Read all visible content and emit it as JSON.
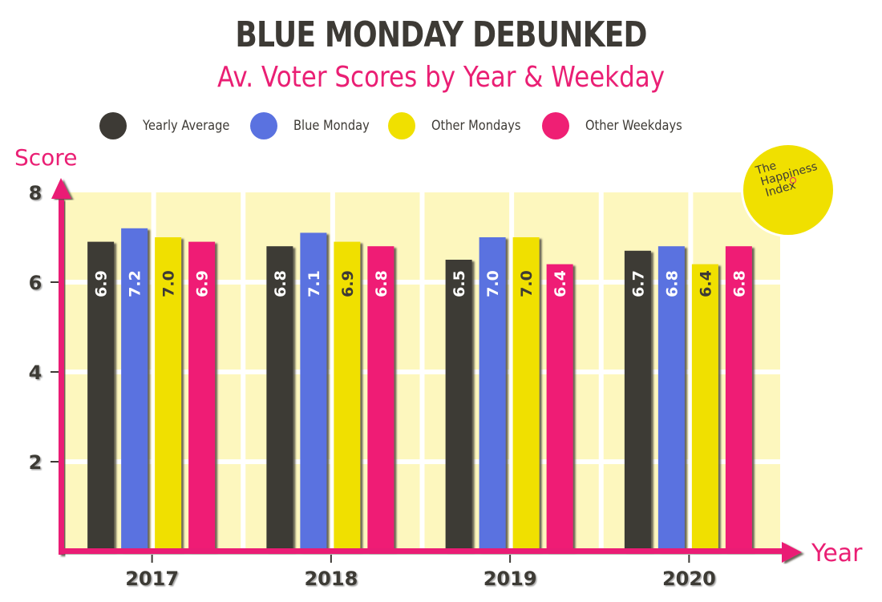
{
  "chart_data": {
    "type": "bar",
    "title": "BLUE MONDAY DEBUNKED",
    "subtitle": "Av. Voter Scores by Year & Weekday",
    "xlabel": "Year",
    "ylabel": "Score",
    "ylim": [
      0,
      8
    ],
    "yticks": [
      2,
      4,
      6,
      8
    ],
    "grid": true,
    "legend_position": "top",
    "categories": [
      "2017",
      "2018",
      "2019",
      "2020"
    ],
    "series": [
      {
        "name": "Yearly Average",
        "color": "#3d3a35",
        "label_color": "#ffffff",
        "values": [
          6.9,
          6.8,
          6.5,
          6.7
        ]
      },
      {
        "name": "Blue Monday",
        "color": "#5a72e0",
        "label_color": "#ffffff",
        "values": [
          7.2,
          7.1,
          7.0,
          6.8
        ]
      },
      {
        "name": "Other Mondays",
        "color": "#f0e000",
        "label_color": "#3d3a35",
        "values": [
          7.0,
          6.9,
          7.0,
          6.4
        ]
      },
      {
        "name": "Other Weekdays",
        "color": "#ef1f74",
        "label_color": "#ffffff",
        "values": [
          6.9,
          6.8,
          6.4,
          6.8
        ]
      }
    ],
    "data_labels": [
      [
        "6.9",
        "7.2",
        "7.0",
        "6.9"
      ],
      [
        "6.8",
        "7.1",
        "6.9",
        "6.8"
      ],
      [
        "6.5",
        "7.0",
        "7.0",
        "6.4"
      ],
      [
        "6.7",
        "6.8",
        "6.4",
        "6.8"
      ]
    ]
  },
  "badge": {
    "line1": "The",
    "line2": "Happiness",
    "line3": "Index"
  },
  "colors": {
    "accent": "#ea1f74",
    "text": "#3d3a35",
    "plot_bg": "#fdf7be",
    "grid": "#ffffff"
  }
}
